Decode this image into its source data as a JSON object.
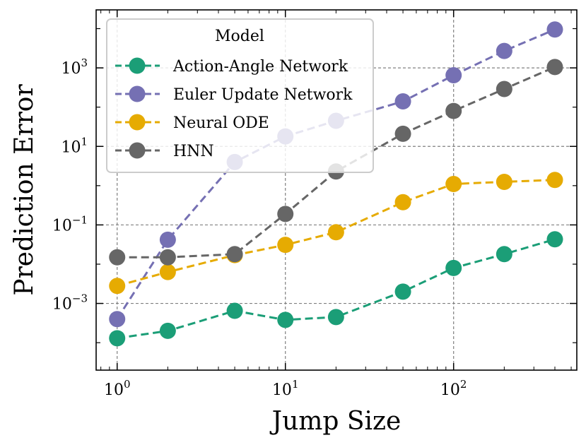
{
  "chart_data": {
    "type": "line",
    "xlabel": "Jump Size",
    "ylabel": "Prediction Error",
    "xscale": "log",
    "yscale": "log",
    "xlim": [
      0.75,
      540
    ],
    "ylim": [
      2e-05,
      30000
    ],
    "x": [
      1,
      2,
      5,
      10,
      20,
      50,
      100,
      200,
      400
    ],
    "x_ticks": [
      {
        "value": 1,
        "base": "10",
        "exp": "0"
      },
      {
        "value": 10,
        "base": "10",
        "exp": "1"
      },
      {
        "value": 100,
        "base": "10",
        "exp": "2"
      }
    ],
    "y_ticks": [
      {
        "value": 0.001,
        "base": "10",
        "exp": "−3"
      },
      {
        "value": 0.1,
        "base": "10",
        "exp": "−1"
      },
      {
        "value": 10,
        "base": "10",
        "exp": "1"
      },
      {
        "value": 1000,
        "base": "10",
        "exp": "3"
      }
    ],
    "grid": true,
    "legend": {
      "title": "Model",
      "location": "top-left"
    },
    "series": [
      {
        "name": "Action-Angle Network",
        "color": "#1b9e77",
        "values": [
          0.00013,
          0.0002,
          0.00065,
          0.00038,
          0.00045,
          0.002,
          0.008,
          0.018,
          0.043
        ]
      },
      {
        "name": "Euler Update Network",
        "color": "#7570b3",
        "values": [
          0.0004,
          0.042,
          4,
          18,
          45,
          140,
          650,
          2700,
          9500
        ]
      },
      {
        "name": "Neural ODE",
        "color": "#e6ab02",
        "values": [
          0.0028,
          0.0063,
          0.017,
          0.031,
          0.065,
          0.38,
          1.1,
          1.25,
          1.4
        ]
      },
      {
        "name": "HNN",
        "color": "#666666",
        "values": [
          0.015,
          0.015,
          0.018,
          0.19,
          2.3,
          21,
          80,
          290,
          1050
        ]
      }
    ]
  }
}
